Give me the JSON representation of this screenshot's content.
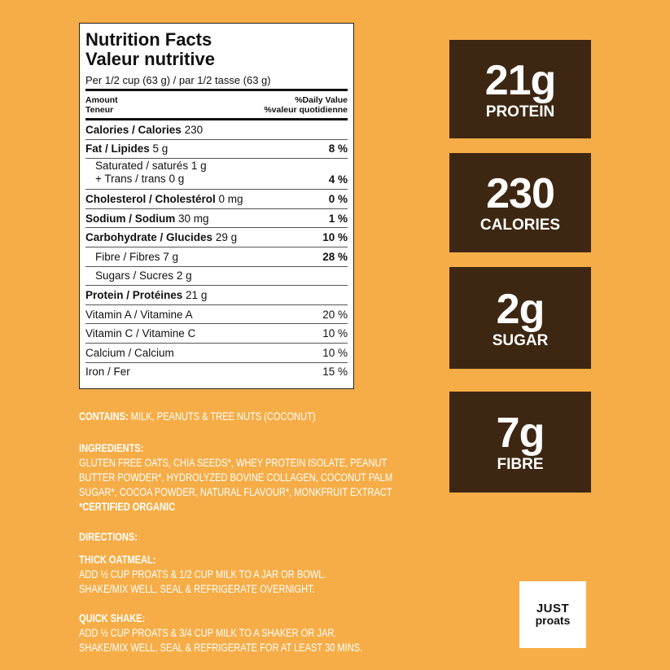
{
  "nutrition_facts": {
    "title": "Nutrition Facts",
    "title_fr": "Valeur nutritive",
    "serving": "Per 1/2 cup (63 g) / par 1/2 tasse (63 g)",
    "amount": "Amount",
    "amount_fr": "Teneur",
    "daily_value": "%Daily Value",
    "daily_value_fr": "%valeur quotidienne",
    "rows": [
      {
        "name": "Calories / Calories",
        "amount": "230"
      },
      {
        "name": "Fat / Lipides",
        "amount": "5 g",
        "dv": "8 %"
      },
      {
        "name": "Saturated / saturés",
        "amount": "1 g"
      },
      {
        "name": "+ Trans / trans",
        "amount": "0 g",
        "dv": "4 %"
      },
      {
        "name": "Cholesterol / Cholestérol",
        "amount": "0 mg",
        "dv": "0 %"
      },
      {
        "name": "Sodium / Sodium",
        "amount": "30 mg",
        "dv": "1 %"
      },
      {
        "name": "Carbohydrate / Glucides",
        "amount": "29 g",
        "dv": "10 %"
      },
      {
        "name": "Fibre / Fibres",
        "amount": "7 g",
        "dv": "28 %"
      },
      {
        "name": "Sugars / Sucres",
        "amount": "2 g"
      },
      {
        "name": "Protein / Protéines",
        "amount": "21 g"
      }
    ],
    "vitamins": [
      {
        "name": "Vitamin A / Vitamine A",
        "dv": "20 %"
      },
      {
        "name": "Vitamin C / Vitamine C",
        "dv": "10 %"
      },
      {
        "name": "Calcium / Calcium",
        "dv": "10 %"
      },
      {
        "name": "Iron / Fer",
        "dv": "15 %"
      }
    ]
  },
  "highlights": [
    {
      "value": "21g",
      "label": "PROTEIN"
    },
    {
      "value": "230",
      "label": "CALORIES"
    },
    {
      "value": "2g",
      "label": "SUGAR"
    },
    {
      "value": "7g",
      "label": "FIBRE"
    }
  ],
  "contains": {
    "label": "CONTAINS:",
    "text": "MILK, PEANUTS & TREE NUTS (COCONUT)"
  },
  "ingredients": {
    "title": "INGREDIENTS:",
    "lines": [
      "GLUTEN FREE OATS, CHIA SEEDS*, WHEY PROTEIN ISOLATE, PEANUT",
      "BUTTER POWDER*, HYDROLYZED BOVINE COLLAGEN, COCONUT PALM",
      "SUGAR*, COCOA POWDER, NATURAL FLAVOUR*, MONKFRUIT EXTRACT"
    ],
    "note": "*CERTIFIED ORGANIC"
  },
  "directions": {
    "title": "DIRECTIONS:",
    "sections": [
      {
        "title": "THICK OATMEAL:",
        "lines": [
          "ADD ½ CUP PROATS & 1/2 CUP MILK TO A JAR OR BOWL.",
          "SHAKE/MIX WELL, SEAL & REFRIGERATE OVERNIGHT."
        ]
      },
      {
        "title": "QUICK SHAKE:",
        "lines": [
          "ADD ½ CUP PROATS & 3/4 CUP MILK TO A SHAKER OR JAR.",
          "SHAKE/MIX WELL, SEAL & REFRIGERATE FOR AT LEAST 30 MINS."
        ]
      }
    ]
  },
  "logo": {
    "line1": "JUST",
    "line2": "proats"
  }
}
